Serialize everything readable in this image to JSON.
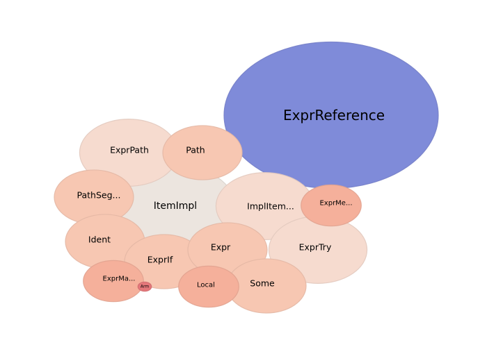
{
  "chart_data": {
    "type": "bubble",
    "title": "",
    "bubbles": [
      {
        "label": "ExprReference",
        "value": 100.0,
        "color": "#7f8bd9"
      },
      {
        "label": "ItemImpl",
        "value": 31.0,
        "color": "#ece5df"
      },
      {
        "label": "ExprPath",
        "value": 21.0,
        "color": "#f6dbcf"
      },
      {
        "label": "ImplItem...",
        "value": 21.0,
        "color": "#f6dbcf"
      },
      {
        "label": "ExprTry",
        "value": 21.0,
        "color": "#f6dbcf"
      },
      {
        "label": "Path",
        "value": 13.7,
        "color": "#f7c7b2"
      },
      {
        "label": "PathSeg...",
        "value": 13.7,
        "color": "#f7c7b2"
      },
      {
        "label": "Ident",
        "value": 13.7,
        "color": "#f7c7b2"
      },
      {
        "label": "ExprIf",
        "value": 13.7,
        "color": "#f7c7b2"
      },
      {
        "label": "Expr",
        "value": 13.7,
        "color": "#f7c7b2"
      },
      {
        "label": "Some",
        "value": 13.7,
        "color": "#f7c7b2"
      },
      {
        "label": "ExprMe...",
        "value": 7.9,
        "color": "#f5b09b"
      },
      {
        "label": "ExprMa...",
        "value": 7.9,
        "color": "#f5b09b"
      },
      {
        "label": "Local",
        "value": 7.9,
        "color": "#f5b09b"
      },
      {
        "label": "Arm",
        "value": 0.4,
        "color": "#e4777a"
      }
    ]
  }
}
